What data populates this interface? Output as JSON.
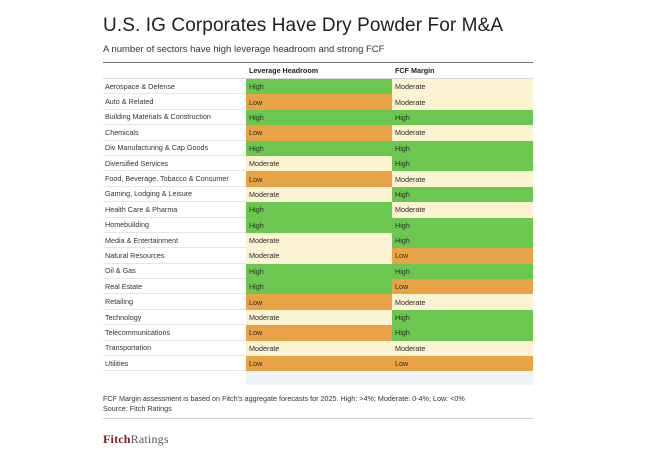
{
  "title": "U.S. IG Corporates Have Dry Powder For M&A",
  "subtitle": "A number of sectors have high leverage headroom and strong FCF",
  "colors": {
    "High": "#6cc750",
    "Moderate": "#fcf3d2",
    "Low": "#e7a346"
  },
  "chart_data": {
    "type": "table",
    "columns": [
      "Leverage Headroom",
      "FCF Margin"
    ],
    "rows": [
      {
        "sector": "Aerospace & Defense",
        "leverage": "High",
        "fcf": "Moderate"
      },
      {
        "sector": "Auto & Related",
        "leverage": "Low",
        "fcf": "Moderate"
      },
      {
        "sector": "Building Materials & Construction",
        "leverage": "High",
        "fcf": "High"
      },
      {
        "sector": "Chemicals",
        "leverage": "Low",
        "fcf": "Moderate"
      },
      {
        "sector": "Div Manufacturing & Cap Goods",
        "leverage": "High",
        "fcf": "High"
      },
      {
        "sector": "Diversified Services",
        "leverage": "Moderate",
        "fcf": "High"
      },
      {
        "sector": "Food, Beverage, Tobacco & Consumer",
        "leverage": "Low",
        "fcf": "Moderate"
      },
      {
        "sector": "Gaming, Lodging & Leisure",
        "leverage": "Moderate",
        "fcf": "High"
      },
      {
        "sector": "Health Care & Pharma",
        "leverage": "High",
        "fcf": "Moderate"
      },
      {
        "sector": "Homebuilding",
        "leverage": "High",
        "fcf": "High"
      },
      {
        "sector": "Media & Entertainment",
        "leverage": "Moderate",
        "fcf": "High"
      },
      {
        "sector": "Natural Resources",
        "leverage": "Moderate",
        "fcf": "Low"
      },
      {
        "sector": "Oil & Gas",
        "leverage": "High",
        "fcf": "High"
      },
      {
        "sector": "Real Estate",
        "leverage": "High",
        "fcf": "Low"
      },
      {
        "sector": "Retailing",
        "leverage": "Low",
        "fcf": "Moderate"
      },
      {
        "sector": "Technology",
        "leverage": "Moderate",
        "fcf": "High"
      },
      {
        "sector": "Telecommunications",
        "leverage": "Low",
        "fcf": "High"
      },
      {
        "sector": "Transportation",
        "leverage": "Moderate",
        "fcf": "Moderate"
      },
      {
        "sector": "Utilities",
        "leverage": "Low",
        "fcf": "Low"
      }
    ]
  },
  "footnote": "FCF Margin assessment is based on Fitch's aggregate forecasts for 2025. High: >4%; Moderate: 0-4%; Low: <0%",
  "source": "Source: Fitch Ratings",
  "logo": {
    "part1": "Fitch",
    "part2": "Ratings"
  }
}
